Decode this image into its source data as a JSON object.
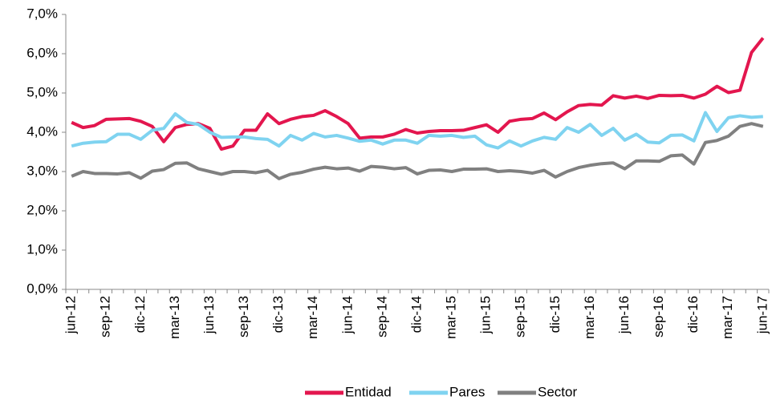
{
  "chart_data": {
    "type": "line",
    "categories": [
      "jun-12",
      null,
      null,
      "sep-12",
      null,
      null,
      "dic-12",
      null,
      null,
      "mar-13",
      null,
      null,
      "jun-13",
      null,
      null,
      "sep-13",
      null,
      null,
      "dic-13",
      null,
      null,
      "mar-14",
      null,
      null,
      "jun-14",
      null,
      null,
      "sep-14",
      null,
      null,
      "dic-14",
      null,
      null,
      "mar-15",
      null,
      null,
      "jun-15",
      null,
      null,
      "sep-15",
      null,
      null,
      "dic-15",
      null,
      null,
      "mar-16",
      null,
      null,
      "jun-16",
      null,
      null,
      "sep-16",
      null,
      null,
      "dic-16",
      null,
      null,
      "mar-17",
      null,
      null,
      "jun-17"
    ],
    "series": [
      {
        "name": "Entidad",
        "color": "#e3164e",
        "values": [
          4.25,
          4.12,
          4.17,
          4.33,
          4.34,
          4.35,
          4.28,
          4.15,
          3.76,
          4.12,
          4.2,
          4.22,
          4.1,
          3.57,
          3.65,
          4.05,
          4.05,
          4.47,
          4.22,
          4.33,
          4.4,
          4.43,
          4.55,
          4.4,
          4.22,
          3.85,
          3.88,
          3.88,
          3.95,
          4.07,
          3.98,
          4.02,
          4.04,
          4.04,
          4.05,
          4.12,
          4.19,
          4.0,
          4.28,
          4.33,
          4.35,
          4.49,
          4.32,
          4.52,
          4.68,
          4.71,
          4.69,
          4.93,
          4.87,
          4.92,
          4.86,
          4.94,
          4.93,
          4.94,
          4.87,
          4.97,
          5.17,
          5.01,
          5.07,
          6.03,
          6.4
        ]
      },
      {
        "name": "Pares",
        "color": "#7fd3f0",
        "values": [
          3.65,
          3.72,
          3.75,
          3.76,
          3.95,
          3.95,
          3.82,
          4.05,
          4.1,
          4.47,
          4.25,
          4.2,
          4.0,
          3.87,
          3.88,
          3.88,
          3.84,
          3.82,
          3.65,
          3.92,
          3.8,
          3.97,
          3.88,
          3.92,
          3.85,
          3.77,
          3.8,
          3.7,
          3.8,
          3.8,
          3.72,
          3.92,
          3.9,
          3.92,
          3.87,
          3.9,
          3.68,
          3.6,
          3.78,
          3.65,
          3.78,
          3.87,
          3.82,
          4.12,
          4.0,
          4.2,
          3.92,
          4.1,
          3.8,
          3.95,
          3.75,
          3.73,
          3.92,
          3.93,
          3.78,
          4.5,
          4.02,
          4.37,
          4.42,
          4.38,
          4.4
        ]
      },
      {
        "name": "Sector",
        "color": "#808080",
        "values": [
          2.88,
          3.0,
          2.95,
          2.95,
          2.94,
          2.97,
          2.83,
          3.01,
          3.05,
          3.21,
          3.22,
          3.07,
          3.0,
          2.93,
          3.0,
          3.0,
          2.97,
          3.03,
          2.82,
          2.93,
          2.98,
          3.06,
          3.11,
          3.07,
          3.09,
          3.01,
          3.13,
          3.11,
          3.07,
          3.1,
          2.94,
          3.03,
          3.04,
          3.0,
          3.06,
          3.06,
          3.07,
          3.0,
          3.02,
          3.0,
          2.96,
          3.03,
          2.86,
          3.0,
          3.1,
          3.16,
          3.2,
          3.22,
          3.07,
          3.27,
          3.27,
          3.26,
          3.4,
          3.42,
          3.19,
          3.74,
          3.79,
          3.9,
          4.15,
          4.22,
          4.15
        ]
      }
    ],
    "ylim": [
      0,
      7
    ],
    "yticks": [
      {
        "value": 0,
        "label": "0,0%"
      },
      {
        "value": 1,
        "label": "1,0%"
      },
      {
        "value": 2,
        "label": "2,0%"
      },
      {
        "value": 3,
        "label": "3,0%"
      },
      {
        "value": 4,
        "label": "4,0%"
      },
      {
        "value": 5,
        "label": "5,0%"
      },
      {
        "value": 6,
        "label": "6,0%"
      },
      {
        "value": 7,
        "label": "7,0%"
      }
    ],
    "legend": "bottom"
  }
}
